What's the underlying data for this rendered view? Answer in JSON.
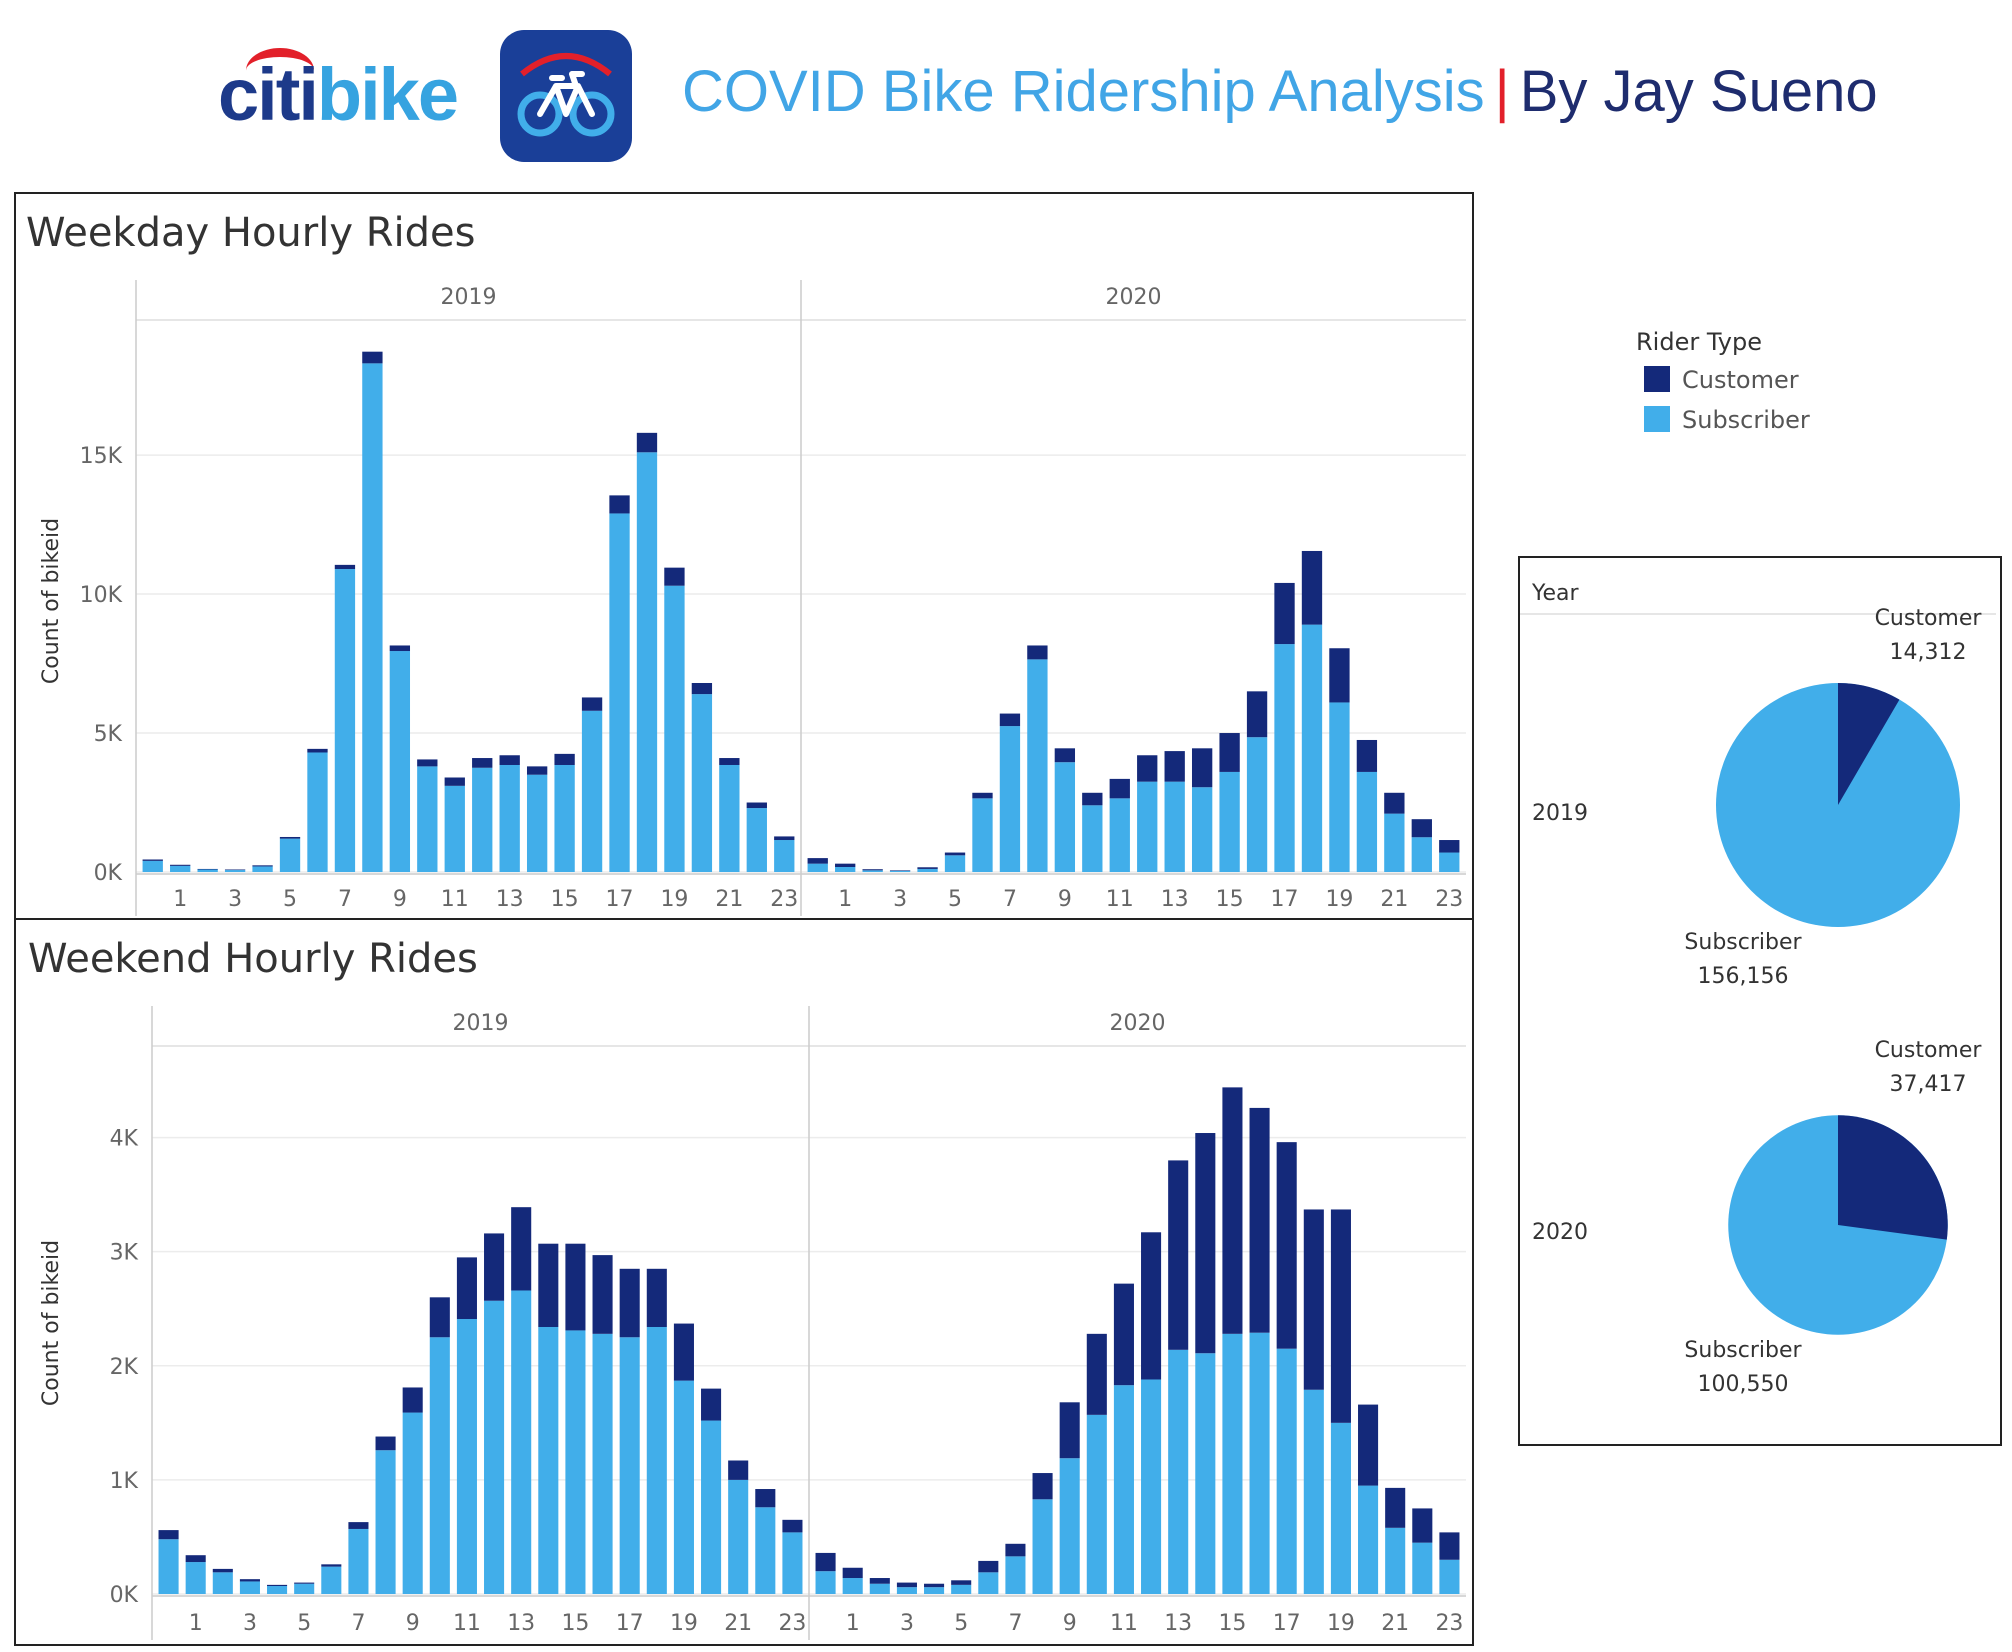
{
  "header": {
    "brand_citi": "citi",
    "brand_bike": "bike",
    "title": "COVID Bike Ridership Analysis",
    "separator": "|",
    "author": "By Jay Sueno",
    "icon": "bike-icon"
  },
  "colors": {
    "customer": "#14297a",
    "subscriber": "#41aeea",
    "grid": "#ececec",
    "axis_text": "#666666"
  },
  "legend": {
    "title": "Rider Type",
    "items": [
      "Customer",
      "Subscriber"
    ]
  },
  "chart_data": [
    {
      "type": "bar",
      "stacked": true,
      "title": "Weekday Hourly Rides",
      "ylabel": "Count of bikeid",
      "ylim": [
        0,
        19500
      ],
      "yticks": [
        0,
        5000,
        10000,
        15000
      ],
      "ytick_labels": [
        "0K",
        "5K",
        "10K",
        "15K"
      ],
      "xtick_labels": [
        "1",
        "3",
        "5",
        "7",
        "9",
        "11",
        "13",
        "15",
        "17",
        "19",
        "21",
        "23"
      ],
      "categories": [
        0,
        1,
        2,
        3,
        4,
        5,
        6,
        7,
        8,
        9,
        10,
        11,
        12,
        13,
        14,
        15,
        16,
        17,
        18,
        19,
        20,
        21,
        22,
        23
      ],
      "facets": [
        {
          "label": "2019",
          "series": [
            {
              "name": "Subscriber",
              "values": [
                400,
                220,
                90,
                70,
                200,
                1200,
                4300,
                10900,
                18300,
                7950,
                3800,
                3100,
                3750,
                3850,
                3500,
                3850,
                5800,
                12900,
                15100,
                10300,
                6400,
                3850,
                2300,
                1150
              ]
            },
            {
              "name": "Customer",
              "values": [
                50,
                40,
                20,
                20,
                40,
                60,
                130,
                150,
                420,
                200,
                250,
                300,
                350,
                350,
                300,
                400,
                480,
                650,
                700,
                650,
                400,
                250,
                200,
                130
              ]
            }
          ]
        },
        {
          "label": "2020",
          "series": [
            {
              "name": "Subscriber",
              "values": [
                300,
                180,
                60,
                40,
                110,
                600,
                2650,
                5250,
                7650,
                3950,
                2400,
                2650,
                3250,
                3250,
                3050,
                3600,
                4850,
                8200,
                8900,
                6100,
                3600,
                2100,
                1250,
                700
              ]
            },
            {
              "name": "Customer",
              "values": [
                200,
                120,
                40,
                20,
                60,
                100,
                200,
                450,
                500,
                500,
                450,
                700,
                950,
                1100,
                1400,
                1400,
                1650,
                2200,
                2650,
                1950,
                1150,
                750,
                650,
                450
              ]
            }
          ]
        }
      ]
    },
    {
      "type": "bar",
      "stacked": true,
      "title": "Weekend Hourly Rides",
      "ylabel": "Count of bikeid",
      "ylim": [
        0,
        4750
      ],
      "yticks": [
        0,
        1000,
        2000,
        3000,
        4000
      ],
      "ytick_labels": [
        "0K",
        "1K",
        "2K",
        "3K",
        "4K"
      ],
      "xtick_labels": [
        "1",
        "3",
        "5",
        "7",
        "9",
        "11",
        "13",
        "15",
        "17",
        "19",
        "21",
        "23"
      ],
      "categories": [
        0,
        1,
        2,
        3,
        4,
        5,
        6,
        7,
        8,
        9,
        10,
        11,
        12,
        13,
        14,
        15,
        16,
        17,
        18,
        19,
        20,
        21,
        22,
        23
      ],
      "facets": [
        {
          "label": "2019",
          "series": [
            {
              "name": "Subscriber",
              "values": [
                480,
                280,
                190,
                110,
                70,
                90,
                240,
                570,
                1260,
                1590,
                2250,
                2410,
                2570,
                2660,
                2340,
                2310,
                2280,
                2250,
                2340,
                1870,
                1520,
                1000,
                760,
                540
              ]
            },
            {
              "name": "Customer",
              "values": [
                80,
                60,
                30,
                20,
                10,
                10,
                20,
                60,
                120,
                220,
                350,
                540,
                590,
                730,
                730,
                760,
                690,
                600,
                510,
                500,
                280,
                170,
                160,
                110
              ]
            }
          ]
        },
        {
          "label": "2020",
          "series": [
            {
              "name": "Subscriber",
              "values": [
                200,
                140,
                90,
                60,
                60,
                80,
                190,
                330,
                830,
                1190,
                1570,
                1830,
                1880,
                2140,
                2110,
                2280,
                2290,
                2150,
                1790,
                1500,
                950,
                580,
                450,
                300
              ]
            },
            {
              "name": "Customer",
              "values": [
                160,
                90,
                50,
                40,
                30,
                40,
                100,
                110,
                230,
                490,
                710,
                890,
                1290,
                1660,
                1930,
                2160,
                1970,
                1810,
                1580,
                1870,
                710,
                350,
                300,
                240
              ]
            }
          ]
        }
      ]
    },
    {
      "type": "pie",
      "title": "",
      "facet_label": "Year",
      "facets": [
        {
          "label": "2019",
          "slices": [
            {
              "name": "Customer",
              "value": 14312,
              "label": "14,312"
            },
            {
              "name": "Subscriber",
              "value": 156156,
              "label": "156,156"
            }
          ]
        },
        {
          "label": "2020",
          "slices": [
            {
              "name": "Customer",
              "value": 37417,
              "label": "37,417"
            },
            {
              "name": "Subscriber",
              "value": 100550,
              "label": "100,550"
            }
          ]
        }
      ]
    }
  ]
}
